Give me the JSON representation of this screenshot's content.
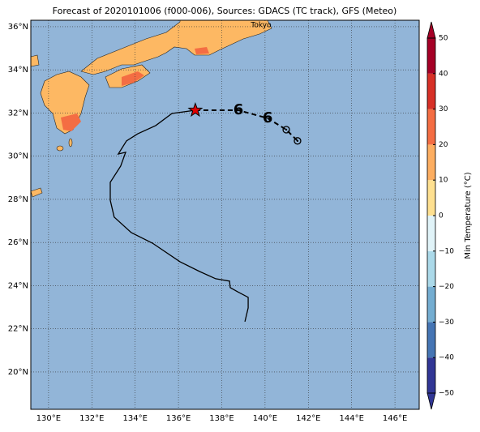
{
  "map": {
    "title": "Forecast of 2020101006 (f000-006), Sources: GDACS (TC track), GFS (Meteo)",
    "lonlim": [
      129.18,
      147.12
    ],
    "latlim": [
      18.27,
      36.3
    ],
    "lon_ticks": [
      {
        "value": 130,
        "label": "130°E"
      },
      {
        "value": 132,
        "label": "132°E"
      },
      {
        "value": 134,
        "label": "134°E"
      },
      {
        "value": 136,
        "label": "136°E"
      },
      {
        "value": 138,
        "label": "138°E"
      },
      {
        "value": 140,
        "label": "140°E"
      },
      {
        "value": 142,
        "label": "142°E"
      },
      {
        "value": 144,
        "label": "144°E"
      },
      {
        "value": 146,
        "label": "146°E"
      }
    ],
    "lat_ticks": [
      {
        "value": 20,
        "label": "20°N"
      },
      {
        "value": 22,
        "label": "22°N"
      },
      {
        "value": 24,
        "label": "24°N"
      },
      {
        "value": 26,
        "label": "26°N"
      },
      {
        "value": 28,
        "label": "28°N"
      },
      {
        "value": 30,
        "label": "30°N"
      },
      {
        "value": 32,
        "label": "32°N"
      },
      {
        "value": 34,
        "label": "34°N"
      },
      {
        "value": 36,
        "label": "36°N"
      }
    ],
    "city": "Tokyo",
    "colorbar": {
      "label": "Min Temperature (°C)",
      "lim": [
        -50,
        50
      ],
      "ticks": [
        {
          "value": -50,
          "label": "−50"
        },
        {
          "value": -40,
          "label": "−40"
        },
        {
          "value": -30,
          "label": "−30"
        },
        {
          "value": -20,
          "label": "−20"
        },
        {
          "value": -10,
          "label": "−10"
        },
        0,
        10,
        20,
        30,
        40,
        50
      ],
      "colors": [
        "#313695",
        "#4575b4",
        "#74add1",
        "#abd9e9",
        "#e0f3f8",
        "#fee090",
        "#fdae61",
        "#f46d43",
        "#d73027",
        "#a50026"
      ]
    },
    "track": {
      "lon": [
        139.07,
        139.22,
        139.22,
        138.73,
        138.39,
        138.36,
        137.72,
        136.97,
        136.07,
        134.8,
        133.82,
        133.03,
        132.85,
        132.85,
        133.33,
        133.56,
        133.22,
        133.6,
        134.12,
        134.95,
        135.7,
        136.78
      ],
      "lat": [
        22.33,
        22.97,
        23.46,
        23.72,
        23.91,
        24.21,
        24.32,
        24.66,
        25.11,
        25.97,
        26.46,
        27.18,
        27.96,
        28.79,
        29.54,
        30.18,
        30.1,
        30.71,
        31.04,
        31.42,
        31.98,
        32.13
      ]
    },
    "forecast": {
      "lon": [
        136.78,
        138.77,
        140.12,
        140.98,
        141.5
      ],
      "lat": [
        32.13,
        32.13,
        31.76,
        31.23,
        30.71
      ]
    }
  }
}
